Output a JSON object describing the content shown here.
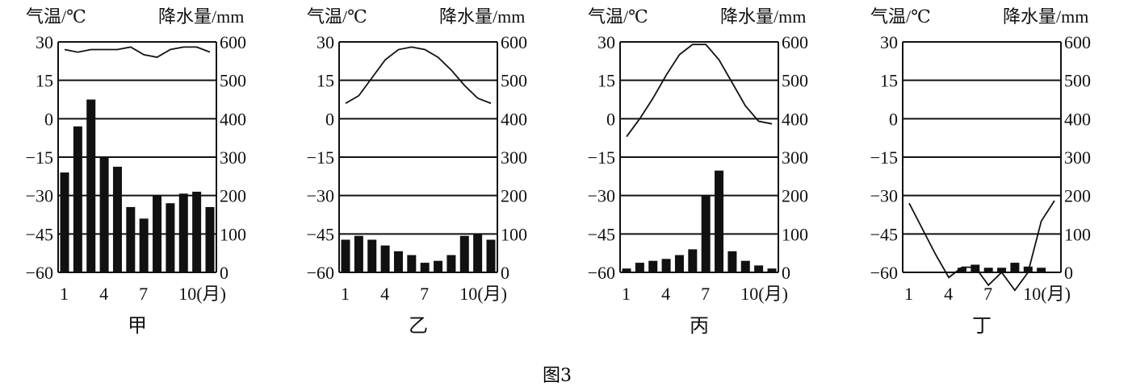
{
  "figure_caption": "图3",
  "chart_data": [
    {
      "type": "bar+line",
      "name": "甲",
      "left_axis_label": "气温/℃",
      "right_axis_label": "降水量/mm",
      "temp_ticks": [
        "30",
        "15",
        "0",
        "-15",
        "-30",
        "-45",
        "-60"
      ],
      "precip_ticks": [
        "600",
        "500",
        "400",
        "300",
        "200",
        "100",
        "0"
      ],
      "x_ticks": [
        "1",
        "4",
        "7",
        "10(月)"
      ],
      "temp_range": [
        -60,
        30
      ],
      "precip_range": [
        0,
        600
      ],
      "temperature": [
        27,
        26,
        27,
        27,
        27,
        28,
        25,
        24,
        27,
        28,
        28,
        26
      ],
      "precipitation": [
        260,
        380,
        450,
        300,
        275,
        170,
        140,
        200,
        180,
        205,
        210,
        170
      ]
    },
    {
      "type": "bar+line",
      "name": "乙",
      "left_axis_label": "气温/℃",
      "right_axis_label": "降水量/mm",
      "temp_ticks": [
        "30",
        "15",
        "0",
        "-15",
        "-30",
        "-45",
        "-60"
      ],
      "precip_ticks": [
        "600",
        "500",
        "400",
        "300",
        "200",
        "100",
        "0"
      ],
      "x_ticks": [
        "1",
        "4",
        "7",
        "10(月)"
      ],
      "temp_range": [
        -60,
        30
      ],
      "precip_range": [
        0,
        600
      ],
      "temperature": [
        6,
        9,
        16,
        23,
        27,
        28,
        27,
        24,
        19,
        13,
        8,
        6
      ],
      "precipitation": [
        85,
        95,
        85,
        70,
        55,
        45,
        25,
        30,
        45,
        95,
        100,
        85
      ]
    },
    {
      "type": "bar+line",
      "name": "丙",
      "left_axis_label": "气温/℃",
      "right_axis_label": "降水量/mm",
      "temp_ticks": [
        "30",
        "15",
        "0",
        "-15",
        "-30",
        "-45",
        "-60"
      ],
      "precip_ticks": [
        "600",
        "500",
        "400",
        "300",
        "200",
        "100",
        "0"
      ],
      "x_ticks": [
        "1",
        "4",
        "7",
        "10(月)"
      ],
      "temp_range": [
        -60,
        30
      ],
      "precip_range": [
        0,
        600
      ],
      "temperature": [
        -7,
        0,
        8,
        17,
        25,
        29,
        29,
        23,
        14,
        5,
        -1,
        -2
      ],
      "precipitation": [
        10,
        25,
        30,
        35,
        45,
        60,
        200,
        265,
        55,
        30,
        18,
        10
      ]
    },
    {
      "type": "bar+line",
      "name": "丁",
      "left_axis_label": "气温/℃",
      "right_axis_label": "降水量/mm",
      "temp_ticks": [
        "30",
        "15",
        "0",
        "-15",
        "-30",
        "-45",
        "-60"
      ],
      "precip_ticks": [
        "600",
        "500",
        "400",
        "300",
        "200",
        "100",
        "0"
      ],
      "x_ticks": [
        "1",
        "4",
        "7",
        "10(月)"
      ],
      "temp_range": [
        -60,
        30
      ],
      "precip_range": [
        0,
        600
      ],
      "temperature": [
        -33,
        -43,
        -53,
        -62,
        -58,
        -58,
        -65,
        -60,
        -67,
        -60,
        -40,
        -32
      ],
      "precipitation": [
        0,
        0,
        0,
        0,
        12,
        20,
        12,
        12,
        25,
        15,
        12,
        0
      ]
    }
  ]
}
